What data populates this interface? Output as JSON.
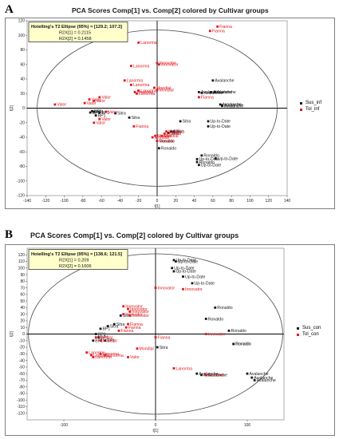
{
  "colors": {
    "sus": "#1a1a1a",
    "tol": "#e0191f",
    "ellipse": "#4a4a4a",
    "stats_box_bg": "#ffffcc",
    "stats_box_border": "#3a3a3a"
  },
  "panels": [
    {
      "letter": "A",
      "title": "PCA Scores Comp[1] vs. Comp[2] colored by Cultivar groups",
      "stats": [
        "Hotelling's T2 Ellipse (95%) = [129.2; 107.3]",
        "R2X[1] = 0.2115",
        "R2X[2] = 0.1458"
      ],
      "legend": [
        "Sus_inf",
        "Tol_inf"
      ]
    },
    {
      "letter": "B",
      "title": "PCA Scores Comp[1] vs. Comp[2] colored by Cultivar groups",
      "stats": [
        "Hotelling's T2 Ellipse (95%) = [138.6; 121.5]",
        "R2X[1] = 0.209",
        "R2X[2] = 0.1606"
      ],
      "legend": [
        "Sus_con",
        "Tol_con"
      ]
    }
  ],
  "chart_data": [
    {
      "type": "scatter",
      "title": "PCA Scores Comp[1] vs. Comp[2] colored by Cultivar groups",
      "xlabel": "t[1]",
      "ylabel": "t[2]",
      "xlim": [
        -140,
        140
      ],
      "ylim": [
        -120,
        120
      ],
      "xticks": [
        -140,
        -120,
        -100,
        -80,
        -60,
        -40,
        -20,
        0,
        20,
        40,
        60,
        80,
        100,
        120,
        140
      ],
      "yticks": [
        -120,
        -100,
        -80,
        -60,
        -40,
        -20,
        0,
        20,
        40,
        60,
        80,
        100,
        120
      ],
      "ellipse": [
        129.2,
        107.3
      ],
      "series": [
        {
          "name": "Sus_inf",
          "points": [
            {
              "x": 45,
              "y": 22,
              "label": "Avalanche"
            },
            {
              "x": 48,
              "y": 21,
              "label": "Avalanche"
            },
            {
              "x": 60,
              "y": 38,
              "label": "Avalanche"
            },
            {
              "x": 58,
              "y": 22,
              "label": "Avalanche"
            },
            {
              "x": 62,
              "y": 22,
              "label": "Avalanche"
            },
            {
              "x": 68,
              "y": 5,
              "label": "Avalanche"
            },
            {
              "x": 70,
              "y": 4,
              "label": "Avalanche"
            },
            {
              "x": 70,
              "y": 3,
              "label": "Avalanche"
            },
            {
              "x": 55,
              "y": -18,
              "label": "Up-to-Date"
            },
            {
              "x": 55,
              "y": -25,
              "label": "Up-to-Date"
            },
            {
              "x": 48,
              "y": -65,
              "label": "Ronaldo"
            },
            {
              "x": 43,
              "y": -70,
              "label": "Up-to-Date"
            },
            {
              "x": 43,
              "y": -74,
              "label": "Ronaldo"
            },
            {
              "x": 63,
              "y": -69,
              "label": "Up-to-Date"
            },
            {
              "x": 45,
              "y": -78,
              "label": "Up-to-Date"
            },
            {
              "x": 2,
              "y": -55,
              "label": "Ronaldo"
            },
            {
              "x": 0,
              "y": -45,
              "label": "Ronaldo"
            },
            {
              "x": 12,
              "y": -34,
              "label": "Sitra"
            },
            {
              "x": 15,
              "y": -32,
              "label": "Sitra"
            },
            {
              "x": 18,
              "y": -32,
              "label": "Sitra"
            },
            {
              "x": 25,
              "y": -18,
              "label": "Sitra"
            },
            {
              "x": -30,
              "y": -13,
              "label": "Sitra"
            },
            {
              "x": -45,
              "y": -7,
              "label": "Sitra"
            },
            {
              "x": -68,
              "y": -5,
              "label": "BP1"
            },
            {
              "x": -72,
              "y": -6,
              "label": "BP1"
            },
            {
              "x": -66,
              "y": -10,
              "label": "BP1"
            },
            {
              "x": -62,
              "y": -6,
              "label": "BP1"
            },
            {
              "x": -70,
              "y": -4,
              "label": "BP1"
            }
          ]
        },
        {
          "name": "Tol_inf",
          "points": [
            {
              "x": 65,
              "y": 112,
              "label": "Fianna"
            },
            {
              "x": 57,
              "y": 106,
              "label": "Fianna"
            },
            {
              "x": 45,
              "y": 15,
              "label": "Fianna"
            },
            {
              "x": -20,
              "y": 90,
              "label": "Lanorma"
            },
            {
              "x": -28,
              "y": 58,
              "label": "Lanorma"
            },
            {
              "x": -35,
              "y": 38,
              "label": "Lanorma"
            },
            {
              "x": -28,
              "y": 32,
              "label": "Lanorma"
            },
            {
              "x": -24,
              "y": 22,
              "label": "Lanorma"
            },
            {
              "x": -22,
              "y": 20,
              "label": "Lanorma"
            },
            {
              "x": -20,
              "y": 24,
              "label": "Lanorma"
            },
            {
              "x": 0,
              "y": 62,
              "label": "Innovator"
            },
            {
              "x": 2,
              "y": 60,
              "label": "Innovator"
            },
            {
              "x": -3,
              "y": 28,
              "label": "Mondial"
            },
            {
              "x": 0,
              "y": 25,
              "label": "Mondial"
            },
            {
              "x": -25,
              "y": -25,
              "label": "Fianna"
            },
            {
              "x": -62,
              "y": -15,
              "label": "Valor"
            },
            {
              "x": -68,
              "y": -20,
              "label": "Valor"
            },
            {
              "x": -73,
              "y": 12,
              "label": "Valor"
            },
            {
              "x": -78,
              "y": 7,
              "label": "Valor"
            },
            {
              "x": -68,
              "y": 10,
              "label": "Valor"
            },
            {
              "x": -62,
              "y": 15,
              "label": "Valor"
            },
            {
              "x": -110,
              "y": 5,
              "label": "Valor"
            },
            {
              "x": -55,
              "y": -5,
              "label": "Valor"
            },
            {
              "x": -5,
              "y": -40,
              "label": "Mondial"
            },
            {
              "x": 5,
              "y": -38,
              "label": "Mondial"
            },
            {
              "x": 8,
              "y": -35,
              "label": "Mondial"
            },
            {
              "x": -2,
              "y": -38,
              "label": "Mondial"
            },
            {
              "x": 10,
              "y": -32,
              "label": "Mondial"
            },
            {
              "x": 0,
              "y": -45,
              "label": "Mondial"
            }
          ]
        }
      ],
      "legend": "right"
    },
    {
      "type": "scatter",
      "title": "PCA Scores Comp[1] vs. Comp[2] colored by Cultivar groups",
      "xlabel": "t[1]",
      "ylabel": "t[2]",
      "xlim": [
        -140,
        140
      ],
      "ylim": [
        -130,
        130
      ],
      "xticks": [
        -100,
        0,
        100
      ],
      "yticks": [
        -120,
        -110,
        -100,
        -90,
        -80,
        -70,
        -60,
        -50,
        -40,
        -30,
        -20,
        -10,
        0,
        10,
        20,
        30,
        40,
        50,
        60,
        70,
        80,
        90,
        100,
        110,
        120
      ],
      "ellipse": [
        138.6,
        121.5
      ],
      "series": [
        {
          "name": "Sus_con",
          "points": [
            {
              "x": 20,
              "y": 112,
              "label": "Up-to-Date"
            },
            {
              "x": 22,
              "y": 110,
              "label": "Up-to-Date"
            },
            {
              "x": 18,
              "y": 100,
              "label": "Up-to-Date"
            },
            {
              "x": 20,
              "y": 95,
              "label": "Up-to-Date"
            },
            {
              "x": 30,
              "y": 87,
              "label": "Up-to-Date"
            },
            {
              "x": 40,
              "y": 77,
              "label": "Up-to-Date"
            },
            {
              "x": 65,
              "y": 40,
              "label": "Ronaldo"
            },
            {
              "x": 55,
              "y": 23,
              "label": "Ronaldo"
            },
            {
              "x": 80,
              "y": 5,
              "label": "Ronaldo"
            },
            {
              "x": 85,
              "y": -15,
              "label": "Ronaldo"
            },
            {
              "x": 85,
              "y": -15,
              "label": "Ronaldo"
            },
            {
              "x": 45,
              "y": -60,
              "label": "Avalanche"
            },
            {
              "x": 50,
              "y": -62,
              "label": "Avalanche"
            },
            {
              "x": 55,
              "y": -62,
              "label": "Avalanche"
            },
            {
              "x": 100,
              "y": -60,
              "label": "Avalanche"
            },
            {
              "x": 105,
              "y": -66,
              "label": "Avalanche"
            },
            {
              "x": 108,
              "y": -70,
              "label": "Avalanche"
            },
            {
              "x": 2,
              "y": -20,
              "label": "Sitra"
            },
            {
              "x": -38,
              "y": 28,
              "label": "Sitra"
            },
            {
              "x": -45,
              "y": 15,
              "label": "Sitra"
            },
            {
              "x": -52,
              "y": 12,
              "label": "Sitra"
            },
            {
              "x": -60,
              "y": 8,
              "label": "BP1"
            },
            {
              "x": -65,
              "y": 0,
              "label": "BP1"
            },
            {
              "x": -62,
              "y": -5,
              "label": "BP1"
            },
            {
              "x": -68,
              "y": -10,
              "label": "BP1"
            },
            {
              "x": -55,
              "y": -10,
              "label": "BP1"
            }
          ]
        },
        {
          "name": "Tol_con",
          "points": [
            {
              "x": 0,
              "y": 70,
              "label": "Innovator"
            },
            {
              "x": 30,
              "y": 68,
              "label": "Innovator"
            },
            {
              "x": -35,
              "y": 42,
              "label": "Innovator"
            },
            {
              "x": -30,
              "y": 38,
              "label": "Innovator"
            },
            {
              "x": -28,
              "y": 34,
              "label": "Innovator"
            },
            {
              "x": -35,
              "y": 30,
              "label": "Innovator"
            },
            {
              "x": -28,
              "y": 28,
              "label": "Innovator"
            },
            {
              "x": 55,
              "y": 0,
              "label": "Innovator"
            },
            {
              "x": -30,
              "y": 15,
              "label": "Fianna"
            },
            {
              "x": -32,
              "y": 10,
              "label": "Fianna"
            },
            {
              "x": -40,
              "y": 5,
              "label": "Fianna"
            },
            {
              "x": -65,
              "y": -5,
              "label": "Mondial"
            },
            {
              "x": -60,
              "y": -10,
              "label": "Mondial"
            },
            {
              "x": -20,
              "y": -22,
              "label": "Mondial"
            },
            {
              "x": 0,
              "y": -5,
              "label": "Fianna"
            },
            {
              "x": -75,
              "y": -28,
              "label": "Lanorma"
            },
            {
              "x": -70,
              "y": -32,
              "label": "Lanorma"
            },
            {
              "x": -68,
              "y": -35,
              "label": "Lanorma"
            },
            {
              "x": -55,
              "y": -32,
              "label": "Lanorma"
            },
            {
              "x": -60,
              "y": -30,
              "label": "Lanorma"
            },
            {
              "x": -30,
              "y": -35,
              "label": "Valor"
            },
            {
              "x": 20,
              "y": -52,
              "label": "Lanorma"
            },
            {
              "x": 55,
              "y": -62,
              "label": "Lanorma"
            }
          ]
        }
      ],
      "legend": "right"
    }
  ]
}
